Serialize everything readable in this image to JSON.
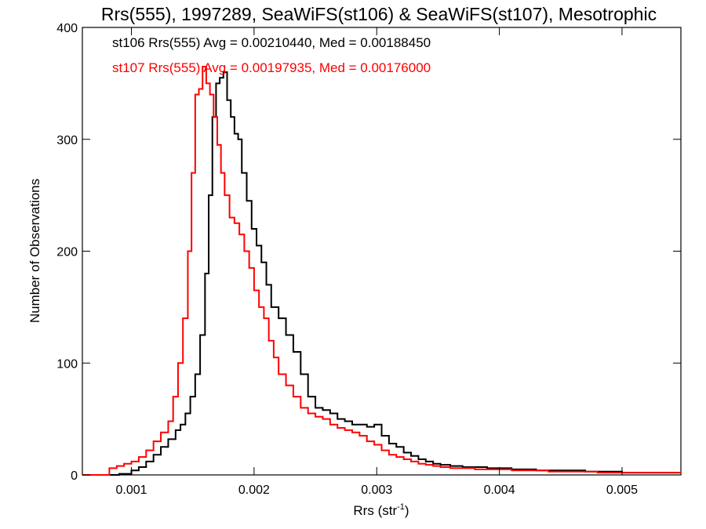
{
  "chart_data": {
    "type": "histogram-step",
    "title": "Rrs(555), 1997289, SeaWiFS(st106) & SeaWiFS(st107), Mesotrophic",
    "xlabel": "Rrs (str",
    "xlabel_sup": "-1",
    "xlabel_close": ")",
    "ylabel": "Number of Observations",
    "xlim": [
      0.0006,
      0.00548
    ],
    "ylim": [
      0,
      400
    ],
    "x_ticks": [
      {
        "value": 0.001,
        "label": "0.001"
      },
      {
        "value": 0.002,
        "label": "0.002"
      },
      {
        "value": 0.003,
        "label": "0.003"
      },
      {
        "value": 0.004,
        "label": "0.004"
      },
      {
        "value": 0.005,
        "label": "0.005"
      }
    ],
    "y_ticks": [
      {
        "value": 0,
        "label": "0"
      },
      {
        "value": 100,
        "label": "100"
      },
      {
        "value": 200,
        "label": "200"
      },
      {
        "value": 300,
        "label": "300"
      },
      {
        "value": 400,
        "label": "400"
      }
    ],
    "series": [
      {
        "id": "st106",
        "color": "#000000",
        "legend": "st106 Rrs(555) Avg = 0.00210440, Med = 0.00188450",
        "points": [
          [
            0.0006,
            0
          ],
          [
            0.0008,
            0
          ],
          [
            0.0009,
            1
          ],
          [
            0.001,
            4
          ],
          [
            0.00106,
            7
          ],
          [
            0.00112,
            12
          ],
          [
            0.00118,
            18
          ],
          [
            0.00124,
            25
          ],
          [
            0.0013,
            32
          ],
          [
            0.00136,
            40
          ],
          [
            0.0014,
            45
          ],
          [
            0.00144,
            55
          ],
          [
            0.00148,
            70
          ],
          [
            0.00152,
            90
          ],
          [
            0.00156,
            125
          ],
          [
            0.0016,
            180
          ],
          [
            0.00163,
            250
          ],
          [
            0.00166,
            320
          ],
          [
            0.00169,
            350
          ],
          [
            0.00172,
            355
          ],
          [
            0.00175,
            360
          ],
          [
            0.00178,
            335
          ],
          [
            0.00181,
            320
          ],
          [
            0.00184,
            305
          ],
          [
            0.00187,
            300
          ],
          [
            0.0019,
            270
          ],
          [
            0.00194,
            245
          ],
          [
            0.00198,
            220
          ],
          [
            0.00202,
            205
          ],
          [
            0.00206,
            190
          ],
          [
            0.0021,
            170
          ],
          [
            0.00214,
            150
          ],
          [
            0.0022,
            140
          ],
          [
            0.00226,
            125
          ],
          [
            0.00232,
            110
          ],
          [
            0.00238,
            90
          ],
          [
            0.00244,
            70
          ],
          [
            0.0025,
            60
          ],
          [
            0.00256,
            58
          ],
          [
            0.00262,
            55
          ],
          [
            0.00268,
            50
          ],
          [
            0.00274,
            48
          ],
          [
            0.0028,
            45
          ],
          [
            0.00286,
            45
          ],
          [
            0.00292,
            43
          ],
          [
            0.00298,
            45
          ],
          [
            0.00304,
            35
          ],
          [
            0.0031,
            28
          ],
          [
            0.00316,
            25
          ],
          [
            0.00322,
            20
          ],
          [
            0.00328,
            17
          ],
          [
            0.00334,
            14
          ],
          [
            0.0034,
            12
          ],
          [
            0.00346,
            10
          ],
          [
            0.00352,
            9
          ],
          [
            0.0036,
            8
          ],
          [
            0.0037,
            7
          ],
          [
            0.0038,
            7
          ],
          [
            0.0039,
            6
          ],
          [
            0.004,
            6
          ],
          [
            0.0041,
            5
          ],
          [
            0.0042,
            5
          ],
          [
            0.0043,
            4
          ],
          [
            0.0044,
            4
          ],
          [
            0.0045,
            4
          ],
          [
            0.0046,
            4
          ],
          [
            0.0047,
            3
          ],
          [
            0.0048,
            3
          ],
          [
            0.0049,
            3
          ],
          [
            0.005,
            2
          ],
          [
            0.0051,
            2
          ],
          [
            0.0052,
            2
          ],
          [
            0.0053,
            2
          ],
          [
            0.0054,
            2
          ],
          [
            0.00548,
            2
          ]
        ]
      },
      {
        "id": "st107",
        "color": "#ff0000",
        "legend": "st107 Rrs(555) Avg = 0.00197935, Med = 0.00176000",
        "points": [
          [
            0.0006,
            0
          ],
          [
            0.0008,
            0
          ],
          [
            0.00082,
            6
          ],
          [
            0.00088,
            8
          ],
          [
            0.00094,
            10
          ],
          [
            0.001,
            12
          ],
          [
            0.00106,
            16
          ],
          [
            0.00112,
            22
          ],
          [
            0.00118,
            30
          ],
          [
            0.00124,
            38
          ],
          [
            0.0013,
            48
          ],
          [
            0.00134,
            70
          ],
          [
            0.00138,
            100
          ],
          [
            0.00142,
            140
          ],
          [
            0.00146,
            200
          ],
          [
            0.00149,
            270
          ],
          [
            0.00152,
            340
          ],
          [
            0.00155,
            345
          ],
          [
            0.00158,
            365
          ],
          [
            0.00161,
            350
          ],
          [
            0.00164,
            340
          ],
          [
            0.00167,
            320
          ],
          [
            0.0017,
            295
          ],
          [
            0.00173,
            270
          ],
          [
            0.00176,
            250
          ],
          [
            0.0018,
            230
          ],
          [
            0.00184,
            225
          ],
          [
            0.00188,
            215
          ],
          [
            0.00192,
            200
          ],
          [
            0.00196,
            185
          ],
          [
            0.002,
            165
          ],
          [
            0.00204,
            150
          ],
          [
            0.00208,
            140
          ],
          [
            0.00212,
            120
          ],
          [
            0.00216,
            105
          ],
          [
            0.0022,
            90
          ],
          [
            0.00226,
            80
          ],
          [
            0.00232,
            70
          ],
          [
            0.00238,
            60
          ],
          [
            0.00244,
            55
          ],
          [
            0.0025,
            52
          ],
          [
            0.00256,
            50
          ],
          [
            0.00262,
            45
          ],
          [
            0.00268,
            42
          ],
          [
            0.00274,
            40
          ],
          [
            0.0028,
            38
          ],
          [
            0.00286,
            35
          ],
          [
            0.00292,
            30
          ],
          [
            0.00298,
            27
          ],
          [
            0.00304,
            22
          ],
          [
            0.0031,
            18
          ],
          [
            0.00316,
            16
          ],
          [
            0.00322,
            14
          ],
          [
            0.00328,
            12
          ],
          [
            0.00334,
            10
          ],
          [
            0.0034,
            9
          ],
          [
            0.00346,
            8
          ],
          [
            0.00352,
            7
          ],
          [
            0.0036,
            6
          ],
          [
            0.0037,
            6
          ],
          [
            0.0038,
            5
          ],
          [
            0.0039,
            5
          ],
          [
            0.004,
            5
          ],
          [
            0.0041,
            4
          ],
          [
            0.0042,
            4
          ],
          [
            0.0043,
            4
          ],
          [
            0.0044,
            3
          ],
          [
            0.0045,
            3
          ],
          [
            0.0046,
            3
          ],
          [
            0.0047,
            3
          ],
          [
            0.0048,
            2
          ],
          [
            0.0049,
            2
          ],
          [
            0.005,
            2
          ],
          [
            0.0051,
            2
          ],
          [
            0.0052,
            2
          ],
          [
            0.0053,
            2
          ],
          [
            0.0054,
            2
          ],
          [
            0.00548,
            2
          ]
        ]
      }
    ]
  }
}
